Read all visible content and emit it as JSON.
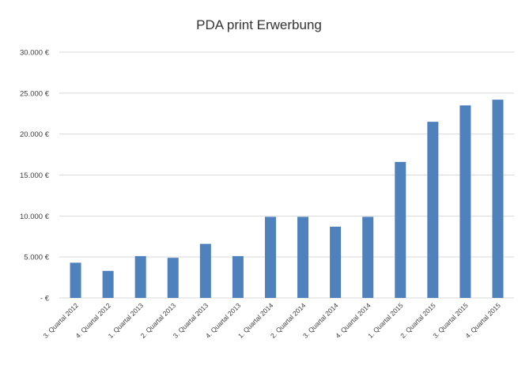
{
  "chart_data": {
    "type": "bar",
    "title": "PDA print Erwerbung",
    "xlabel": "",
    "ylabel": "",
    "categories": [
      "3. Quartal 2012",
      "4. Quartal 2012",
      "1. Quartal 2013",
      "2. Quartal 2013",
      "3. Quartal 2013",
      "4. Quartal 2013",
      "1. Quartal 2014",
      "2. Quartal 2014",
      "3. Quartal 2014",
      "4. Quartal 2014",
      "1. Quartal 2015",
      "2. Quartal 2015",
      "3. Quartal 2015",
      "4. Quartal 2015"
    ],
    "values": [
      4300,
      3300,
      5100,
      4900,
      6600,
      5100,
      9900,
      9900,
      8700,
      9900,
      16600,
      21500,
      23500,
      24200
    ],
    "ylim": [
      0,
      30000
    ],
    "yticks": [
      0,
      5000,
      10000,
      15000,
      20000,
      25000,
      30000
    ],
    "ytick_labels": [
      "- €",
      "5.000 €",
      "10.000 €",
      "15.000 €",
      "20.000 €",
      "25.000 €",
      "30.000 €"
    ],
    "grid": true,
    "legend": "none",
    "bar_color": "#4f81bd",
    "grid_color": "#d9d9d9"
  }
}
